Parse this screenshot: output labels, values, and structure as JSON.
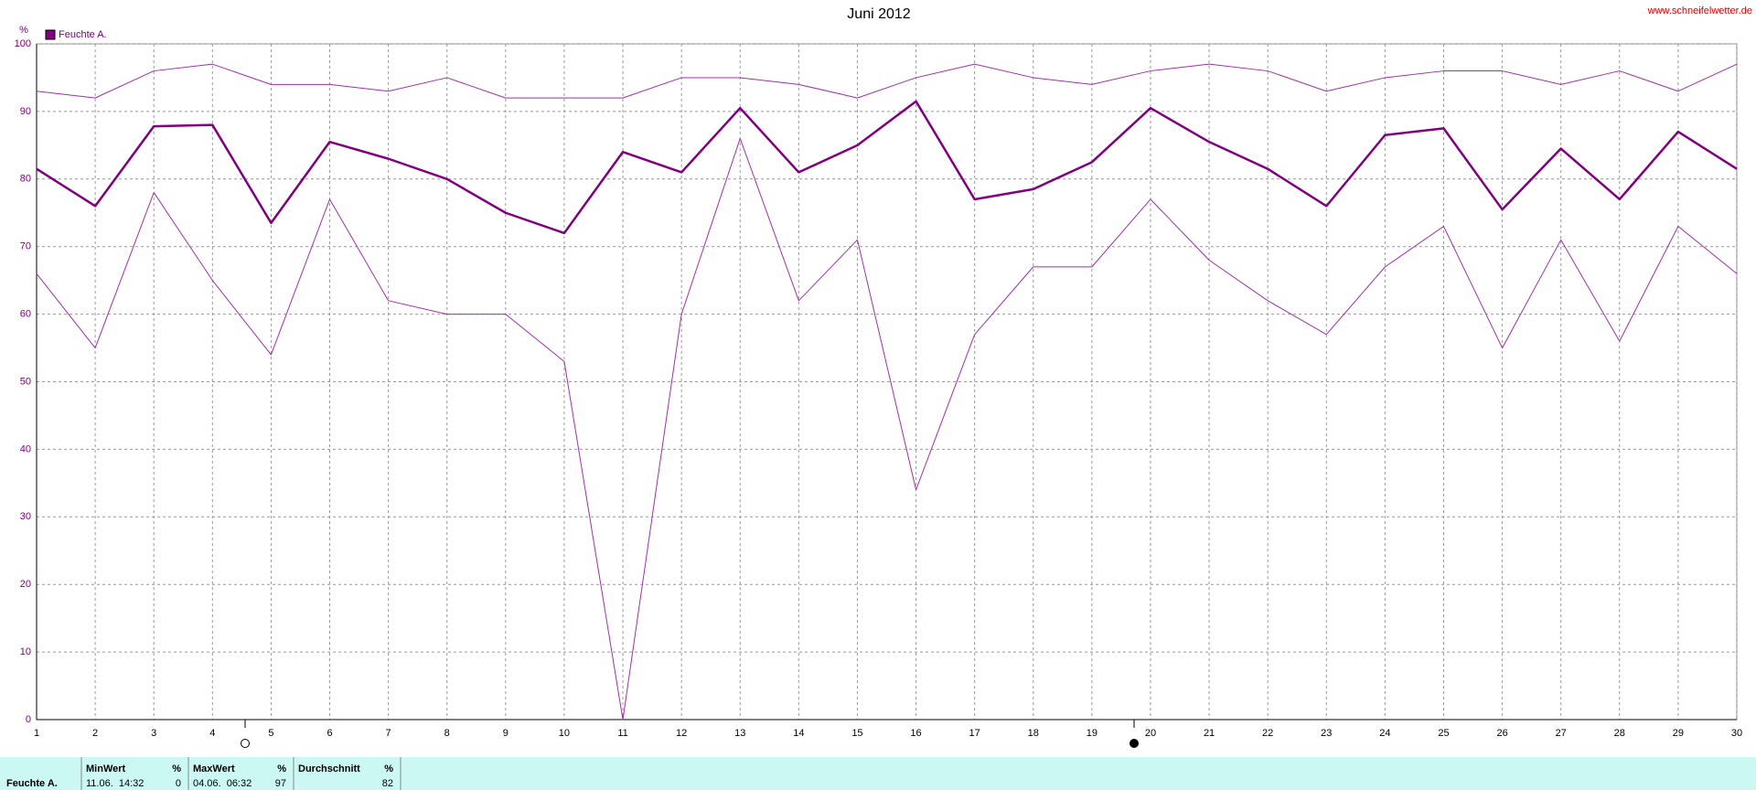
{
  "chart_data": {
    "type": "line",
    "title": "Juni 2012",
    "y_label": "%",
    "source": "www.schneifelwetter.de",
    "x": [
      1,
      2,
      3,
      4,
      5,
      6,
      7,
      8,
      9,
      10,
      11,
      12,
      13,
      14,
      15,
      16,
      17,
      18,
      19,
      20,
      21,
      22,
      23,
      24,
      25,
      26,
      27,
      28,
      29,
      30
    ],
    "xlim": [
      1,
      30
    ],
    "xticks": [
      1,
      2,
      3,
      4,
      5,
      6,
      7,
      8,
      9,
      10,
      11,
      12,
      13,
      14,
      15,
      16,
      17,
      18,
      19,
      20,
      21,
      22,
      23,
      24,
      25,
      26,
      27,
      28,
      29,
      30
    ],
    "ylim": [
      0,
      100
    ],
    "yticks": [
      0,
      10,
      20,
      30,
      40,
      50,
      60,
      70,
      80,
      90,
      100
    ],
    "grid": true,
    "series": [
      {
        "color": "#a030a8",
        "linewidth": 1,
        "values": [
          93,
          92,
          96,
          97,
          94,
          94,
          93,
          95,
          92,
          92,
          92,
          95,
          95,
          94,
          92,
          95,
          97,
          95,
          94,
          96,
          97,
          96,
          93,
          95,
          96,
          96,
          94,
          96,
          93,
          97
        ]
      },
      {
        "name": "Feuchte A.",
        "color": "#800080",
        "linewidth": 2.5,
        "values": [
          81.5,
          76,
          87.8,
          88,
          73.5,
          85.5,
          83,
          80,
          75,
          72,
          84,
          81,
          90.5,
          81,
          85,
          91.5,
          77,
          78.5,
          82.5,
          90.5,
          85.5,
          81.5,
          76,
          86.5,
          87.5,
          75.5,
          84.5,
          77,
          87,
          81.5
        ]
      },
      {
        "color": "#a030a8",
        "linewidth": 1,
        "values": [
          66,
          55,
          78,
          65,
          54,
          77,
          62,
          60,
          60,
          53,
          0,
          60,
          86,
          62,
          71,
          34,
          57,
          67,
          67,
          77,
          68,
          62,
          57,
          67,
          73,
          55,
          71,
          56,
          73,
          66
        ]
      }
    ]
  },
  "table": {
    "label": "Feuchte A.",
    "columns": [
      {
        "name": "MinWert",
        "unit": "%",
        "time": "11.06.  14:32",
        "value": 0
      },
      {
        "name": "MaxWert",
        "unit": "%",
        "time": "04.06.  06:32",
        "value": 97
      },
      {
        "name": "Durchschnitt",
        "unit": "%",
        "value": 82
      }
    ]
  }
}
